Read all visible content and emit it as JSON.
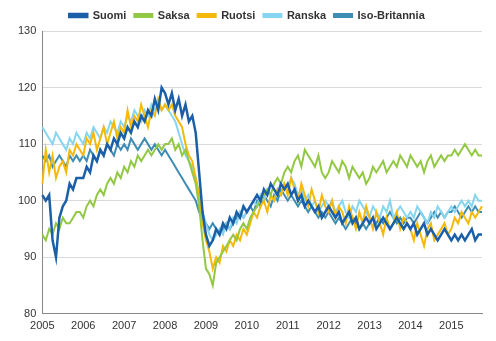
{
  "chart_data": {
    "type": "line",
    "categories": [
      "2005",
      null,
      null,
      null,
      null,
      null,
      null,
      null,
      null,
      null,
      null,
      null,
      "2006",
      null,
      null,
      null,
      null,
      null,
      null,
      null,
      null,
      null,
      null,
      null,
      "2007",
      null,
      null,
      null,
      null,
      null,
      null,
      null,
      null,
      null,
      null,
      null,
      "2008",
      null,
      null,
      null,
      null,
      null,
      null,
      null,
      null,
      null,
      null,
      null,
      "2009",
      null,
      null,
      null,
      null,
      null,
      null,
      null,
      null,
      null,
      null,
      null,
      "2010",
      null,
      null,
      null,
      null,
      null,
      null,
      null,
      null,
      null,
      null,
      null,
      "2011",
      null,
      null,
      null,
      null,
      null,
      null,
      null,
      null,
      null,
      null,
      null,
      "2012",
      null,
      null,
      null,
      null,
      null,
      null,
      null,
      null,
      null,
      null,
      null,
      "2013",
      null,
      null,
      null,
      null,
      null,
      null,
      null,
      null,
      null,
      null,
      null,
      "2014",
      null,
      null,
      null,
      null,
      null,
      null,
      null,
      null,
      null,
      null,
      null,
      "2015",
      null,
      null,
      null,
      null,
      null,
      null,
      null,
      null,
      null
    ],
    "series": [
      {
        "name": "Suomi",
        "color": "#1a5fa8",
        "values": [
          101,
          100,
          101,
          93,
          90,
          97,
          99,
          100,
          103,
          102,
          104,
          104,
          104,
          106,
          105,
          108,
          107,
          109,
          108,
          110,
          109,
          111,
          110,
          112,
          111,
          113,
          112,
          114,
          113,
          115,
          114,
          116,
          115,
          118,
          116,
          120,
          119,
          117,
          119,
          116,
          118,
          115,
          117,
          114,
          115,
          112,
          105,
          98,
          94,
          92,
          93,
          95,
          94,
          96,
          95,
          97,
          96,
          98,
          97,
          99,
          98,
          99,
          100,
          101,
          100,
          102,
          101,
          103,
          102,
          101,
          103,
          102,
          103,
          101,
          102,
          100,
          101,
          99,
          100,
          99,
          98,
          99,
          97,
          98,
          99,
          98,
          97,
          98,
          96,
          97,
          98,
          96,
          97,
          95,
          96,
          97,
          96,
          97,
          95,
          96,
          97,
          96,
          95,
          96,
          97,
          96,
          95,
          96,
          95,
          96,
          94,
          95,
          96,
          94,
          95,
          94,
          93,
          94,
          95,
          94,
          93,
          94,
          93,
          94,
          93,
          94,
          95,
          93,
          94,
          94
        ]
      },
      {
        "name": "Saksa",
        "color": "#92c844",
        "values": [
          94,
          93,
          95,
          94,
          96,
          95,
          97,
          96,
          96,
          97,
          98,
          98,
          97,
          99,
          100,
          99,
          101,
          102,
          101,
          103,
          104,
          103,
          105,
          104,
          106,
          105,
          107,
          106,
          108,
          107,
          108,
          109,
          108,
          109,
          110,
          109,
          110,
          110,
          111,
          109,
          110,
          108,
          109,
          107,
          105,
          103,
          99,
          93,
          88,
          87,
          85,
          89,
          90,
          91,
          92,
          93,
          94,
          93,
          95,
          96,
          95,
          97,
          98,
          99,
          100,
          101,
          102,
          101,
          103,
          104,
          103,
          105,
          106,
          105,
          107,
          108,
          106,
          109,
          108,
          107,
          106,
          108,
          105,
          104,
          105,
          107,
          106,
          105,
          107,
          106,
          104,
          106,
          105,
          104,
          105,
          103,
          104,
          106,
          105,
          106,
          107,
          105,
          106,
          107,
          106,
          108,
          107,
          106,
          108,
          107,
          106,
          107,
          105,
          107,
          108,
          106,
          107,
          108,
          107,
          108,
          108,
          109,
          108,
          109,
          110,
          109,
          108,
          109,
          108,
          108
        ]
      },
      {
        "name": "Ruotsi",
        "color": "#f5b90a",
        "values": [
          103,
          109,
          105,
          108,
          104,
          106,
          107,
          105,
          109,
          108,
          110,
          109,
          108,
          111,
          110,
          112,
          109,
          111,
          113,
          110,
          112,
          114,
          111,
          113,
          112,
          116,
          113,
          115,
          114,
          117,
          115,
          113,
          116,
          115,
          118,
          116,
          117,
          116,
          117,
          115,
          114,
          113,
          110,
          108,
          107,
          104,
          101,
          96,
          93,
          91,
          88,
          90,
          89,
          92,
          91,
          93,
          92,
          94,
          93,
          95,
          94,
          96,
          98,
          97,
          99,
          100,
          98,
          101,
          100,
          102,
          101,
          103,
          101,
          104,
          102,
          100,
          103,
          101,
          99,
          102,
          100,
          98,
          101,
          99,
          98,
          100,
          97,
          99,
          98,
          96,
          99,
          97,
          95,
          98,
          96,
          99,
          97,
          95,
          98,
          96,
          94,
          97,
          95,
          96,
          98,
          95,
          97,
          96,
          95,
          93,
          96,
          94,
          92,
          95,
          96,
          93,
          94,
          95,
          96,
          94,
          95,
          97,
          96,
          98,
          97,
          96,
          98,
          97,
          98,
          99
        ]
      },
      {
        "name": "Ranska",
        "color": "#86d6f2",
        "values": [
          113,
          112,
          111,
          110,
          112,
          111,
          110,
          109,
          111,
          110,
          112,
          111,
          110,
          112,
          111,
          113,
          112,
          111,
          113,
          112,
          114,
          113,
          112,
          114,
          113,
          115,
          114,
          116,
          115,
          114,
          116,
          115,
          117,
          116,
          117,
          116,
          117,
          116,
          115,
          114,
          112,
          110,
          108,
          107,
          106,
          104,
          101,
          98,
          96,
          94,
          93,
          94,
          95,
          94,
          96,
          95,
          97,
          96,
          98,
          97,
          98,
          99,
          100,
          99,
          101,
          100,
          102,
          101,
          100,
          102,
          101,
          103,
          102,
          104,
          103,
          101,
          102,
          100,
          101,
          99,
          100,
          98,
          99,
          100,
          99,
          100,
          98,
          99,
          100,
          98,
          97,
          99,
          98,
          100,
          99,
          98,
          97,
          99,
          98,
          97,
          99,
          98,
          100,
          97,
          98,
          99,
          98,
          97,
          98,
          97,
          99,
          98,
          97,
          96,
          98,
          97,
          99,
          98,
          97,
          98,
          99,
          98,
          99,
          100,
          99,
          100,
          99,
          101,
          100,
          100
        ]
      },
      {
        "name": "Iso-Britannia",
        "color": "#3d8db5",
        "values": [
          108,
          107,
          108,
          106,
          107,
          108,
          107,
          106,
          108,
          107,
          108,
          107,
          108,
          107,
          109,
          108,
          107,
          109,
          108,
          110,
          109,
          108,
          110,
          109,
          110,
          109,
          111,
          110,
          109,
          110,
          111,
          110,
          109,
          110,
          109,
          108,
          109,
          108,
          107,
          106,
          105,
          104,
          103,
          102,
          101,
          100,
          98,
          97,
          96,
          95,
          96,
          95,
          94,
          95,
          96,
          95,
          96,
          97,
          98,
          97,
          98,
          99,
          98,
          100,
          99,
          101,
          100,
          99,
          101,
          100,
          102,
          101,
          100,
          101,
          100,
          99,
          100,
          99,
          98,
          99,
          98,
          97,
          98,
          97,
          98,
          97,
          96,
          97,
          96,
          95,
          96,
          97,
          96,
          95,
          96,
          95,
          96,
          97,
          96,
          97,
          96,
          97,
          98,
          97,
          96,
          97,
          96,
          97,
          97,
          96,
          97,
          98,
          97,
          96,
          97,
          98,
          97,
          98,
          97,
          98,
          98,
          99,
          98,
          97,
          98,
          99,
          98,
          99,
          98,
          98
        ]
      }
    ],
    "ylim": [
      80,
      130
    ],
    "yticks": [
      80,
      90,
      100,
      110,
      120,
      130
    ],
    "grid": true,
    "legend": "top"
  }
}
